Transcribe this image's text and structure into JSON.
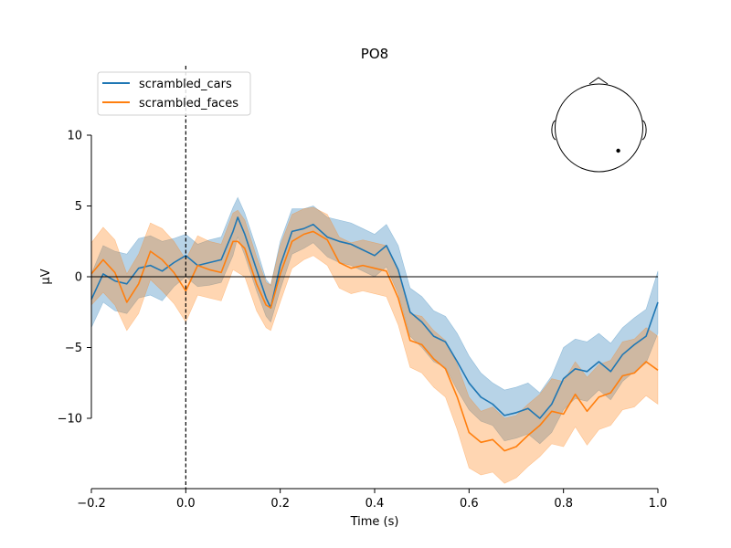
{
  "chart_data": {
    "type": "line",
    "title": "PO8",
    "xlabel": "Time (s)",
    "ylabel": "µV",
    "xlim": [
      -0.2,
      1.0
    ],
    "ylim": [
      -14.8,
      10
    ],
    "x_ticks": [
      -0.2,
      0.0,
      0.2,
      0.4,
      0.6,
      0.8,
      1.0
    ],
    "x_tick_labels": [
      "−0.2",
      "0.0",
      "0.2",
      "0.4",
      "0.6",
      "0.8",
      "1.0"
    ],
    "y_ticks": [
      10,
      5,
      0,
      -5,
      -10
    ],
    "y_tick_labels": [
      "10",
      "5",
      "0",
      "−5",
      "−10"
    ],
    "grid": false,
    "legend_position": "top-left",
    "zero_line": true,
    "stimulus_onset": 0.0,
    "x": [
      -0.2,
      -0.175,
      -0.15,
      -0.125,
      -0.1,
      -0.075,
      -0.05,
      -0.025,
      0.0,
      0.025,
      0.05,
      0.075,
      0.1,
      0.11,
      0.125,
      0.15,
      0.17,
      0.18,
      0.2,
      0.225,
      0.25,
      0.27,
      0.3,
      0.325,
      0.35,
      0.375,
      0.4,
      0.425,
      0.45,
      0.475,
      0.5,
      0.525,
      0.55,
      0.575,
      0.6,
      0.625,
      0.65,
      0.675,
      0.7,
      0.725,
      0.75,
      0.775,
      0.8,
      0.825,
      0.85,
      0.875,
      0.9,
      0.925,
      0.95,
      0.975,
      1.0
    ],
    "series": [
      {
        "name": "scrambled_cars",
        "color": "#1f77b4",
        "values": [
          -1.6,
          0.2,
          -0.3,
          -0.5,
          0.6,
          0.8,
          0.4,
          1.0,
          1.5,
          0.8,
          1.0,
          1.2,
          3.2,
          4.2,
          3.0,
          0.5,
          -1.5,
          -2.2,
          0.8,
          3.2,
          3.4,
          3.7,
          2.8,
          2.5,
          2.3,
          1.9,
          1.5,
          2.2,
          0.5,
          -2.5,
          -3.2,
          -4.2,
          -4.6,
          -6.0,
          -7.5,
          -8.5,
          -9.0,
          -9.8,
          -9.6,
          -9.3,
          -10.0,
          -9.0,
          -7.2,
          -6.5,
          -6.7,
          -6.0,
          -6.7,
          -5.5,
          -4.8,
          -4.2,
          -1.8
        ],
        "upper": [
          0.2,
          2.2,
          1.8,
          1.6,
          2.7,
          2.9,
          2.5,
          2.7,
          3.0,
          2.3,
          2.6,
          2.8,
          4.9,
          5.6,
          4.5,
          2.0,
          -0.2,
          -0.6,
          2.5,
          4.8,
          4.8,
          5.0,
          4.2,
          4.0,
          3.8,
          3.4,
          3.0,
          3.7,
          2.2,
          -0.8,
          -1.4,
          -2.4,
          -2.8,
          -4.0,
          -5.6,
          -6.8,
          -7.5,
          -8.0,
          -7.8,
          -7.5,
          -8.2,
          -7.0,
          -5.0,
          -4.4,
          -4.6,
          -4.0,
          -4.7,
          -3.6,
          -2.9,
          -2.3,
          0.4
        ],
        "lower": [
          -3.6,
          -1.8,
          -2.4,
          -2.6,
          -1.5,
          -1.3,
          -1.7,
          -0.7,
          0.0,
          -0.7,
          -0.6,
          -0.4,
          1.5,
          2.8,
          1.5,
          -1.0,
          -2.8,
          -3.2,
          -0.9,
          1.6,
          2.0,
          2.4,
          1.4,
          1.0,
          0.8,
          0.4,
          0.0,
          0.7,
          -1.2,
          -4.2,
          -5.0,
          -6.0,
          -6.4,
          -8.0,
          -9.4,
          -10.2,
          -10.5,
          -11.6,
          -11.4,
          -11.1,
          -11.8,
          -11.0,
          -9.4,
          -8.6,
          -8.8,
          -8.0,
          -8.7,
          -7.4,
          -6.7,
          -6.1,
          -4.0
        ]
      },
      {
        "name": "scrambled_faces",
        "color": "#ff7f0e",
        "values": [
          0.2,
          1.2,
          0.3,
          -1.8,
          -0.5,
          1.8,
          1.2,
          0.3,
          -1.0,
          0.8,
          0.5,
          0.3,
          2.5,
          2.5,
          2.0,
          -0.5,
          -2.0,
          -2.2,
          0.2,
          2.5,
          3.0,
          3.2,
          2.6,
          1.0,
          0.6,
          0.8,
          0.6,
          0.4,
          -1.5,
          -4.5,
          -4.8,
          -5.8,
          -6.5,
          -8.5,
          -11.0,
          -11.7,
          -11.5,
          -12.3,
          -12.0,
          -11.2,
          -10.5,
          -9.5,
          -9.7,
          -8.3,
          -9.5,
          -8.5,
          -8.2,
          -7.0,
          -6.8,
          -6.0,
          -6.6
        ],
        "upper": [
          2.4,
          3.5,
          2.6,
          0.2,
          1.6,
          3.8,
          3.4,
          2.5,
          1.2,
          2.9,
          2.5,
          2.3,
          4.5,
          4.7,
          4.0,
          1.4,
          -0.4,
          -0.6,
          2.2,
          4.4,
          4.8,
          4.9,
          4.4,
          2.8,
          2.4,
          2.6,
          2.4,
          2.2,
          0.4,
          -2.6,
          -2.8,
          -3.8,
          -4.5,
          -6.2,
          -8.5,
          -9.5,
          -9.2,
          -10.0,
          -9.8,
          -9.0,
          -8.3,
          -7.2,
          -7.4,
          -6.0,
          -7.1,
          -6.2,
          -5.9,
          -4.6,
          -4.4,
          -3.6,
          -4.2
        ],
        "lower": [
          -2.0,
          -1.1,
          -2.0,
          -3.8,
          -2.6,
          -0.2,
          -1.0,
          -1.9,
          -3.2,
          -1.3,
          -1.5,
          -1.7,
          0.5,
          0.3,
          0.0,
          -2.4,
          -3.6,
          -3.8,
          -1.8,
          0.6,
          1.2,
          1.5,
          0.8,
          -0.8,
          -1.2,
          -1.0,
          -1.2,
          -1.4,
          -3.4,
          -6.4,
          -6.8,
          -7.8,
          -8.5,
          -10.8,
          -13.5,
          -14.0,
          -13.8,
          -14.6,
          -14.2,
          -13.4,
          -12.7,
          -11.8,
          -12.0,
          -10.6,
          -11.9,
          -10.8,
          -10.5,
          -9.4,
          -9.2,
          -8.4,
          -9.0
        ]
      }
    ],
    "sensor_inset": {
      "position": "top-right",
      "electrode": {
        "x": 0.22,
        "y": -0.26
      }
    }
  }
}
